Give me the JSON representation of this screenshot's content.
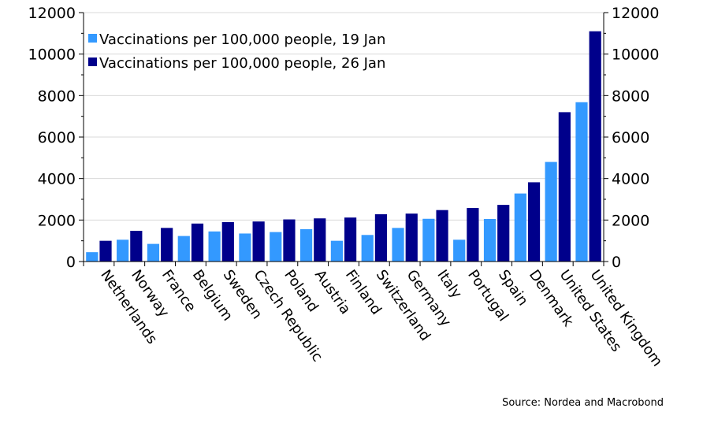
{
  "chart_data": {
    "type": "bar",
    "title": "",
    "xlabel": "",
    "ylabel": "",
    "ylim": [
      0,
      12000
    ],
    "yticks": [
      0,
      2000,
      4000,
      6000,
      8000,
      10000,
      12000
    ],
    "secondary_y_axis": true,
    "grid": "horizontal",
    "legend_position": "top-left",
    "categories": [
      "Netherlands",
      "Norway",
      "France",
      "Belgium",
      "Sweden",
      "Czech Republic",
      "Poland",
      "Austria",
      "Finland",
      "Switzerland",
      "Germany",
      "Italy",
      "Portugal",
      "Spain",
      "Denmark",
      "United States",
      "United Kingdom"
    ],
    "series": [
      {
        "name": "Vaccinations per 100,000 people, 19 Jan",
        "color": "#3399ff",
        "values": [
          450,
          1050,
          850,
          1230,
          1450,
          1350,
          1420,
          1560,
          1000,
          1280,
          1620,
          2060,
          1050,
          2050,
          3280,
          4800,
          7680
        ]
      },
      {
        "name": "Vaccinations per 100,000 people, 26 Jan",
        "color": "#00008b",
        "values": [
          1000,
          1480,
          1620,
          1830,
          1900,
          1930,
          2030,
          2080,
          2120,
          2280,
          2310,
          2480,
          2580,
          2730,
          3820,
          7200,
          11100
        ]
      }
    ]
  },
  "source": "Source: Nordea and Macrobond"
}
